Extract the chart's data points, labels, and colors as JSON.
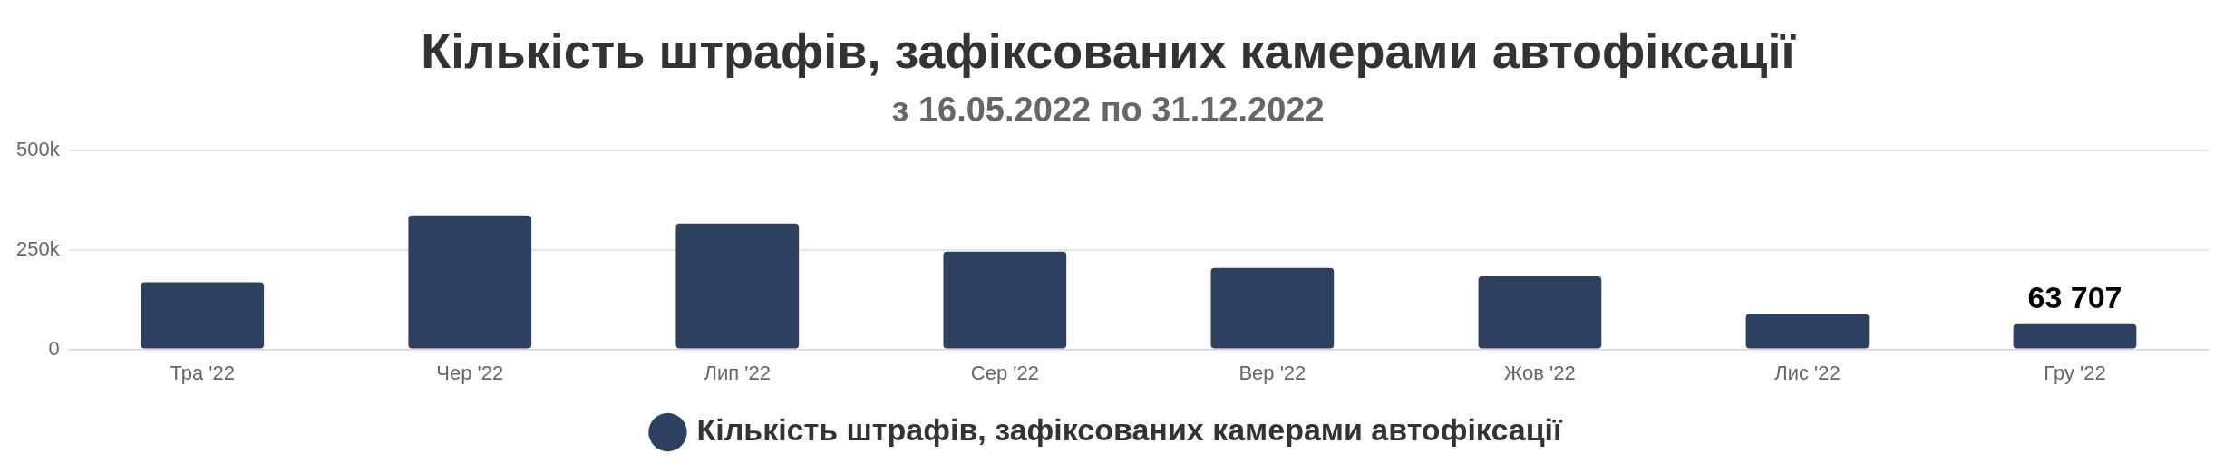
{
  "chart_data": {
    "type": "bar",
    "title": "Кількість штрафів, зафіксованих камерами автофіксації",
    "subtitle": "з 16.05.2022 по 31.12.2022",
    "categories": [
      "Тра '22",
      "Чер '22",
      "Лип '22",
      "Сер '22",
      "Вер '22",
      "Жов '22",
      "Лис '22",
      "Гру '22"
    ],
    "series": [
      {
        "name": "Кількість штрафів, зафіксованих камерами автофіксації",
        "color": "#2d4060",
        "values": [
          169000,
          337000,
          317000,
          246000,
          205000,
          184000,
          89000,
          63707
        ],
        "value_labels": [
          null,
          null,
          null,
          null,
          null,
          null,
          null,
          "63 707"
        ]
      }
    ],
    "ylim": [
      0,
      500000
    ],
    "yticks": [
      0,
      {
        "value": 250000,
        "label": "250k"
      },
      {
        "value": 500000,
        "label": "500k"
      }
    ],
    "grid": "y",
    "legend": "bottom"
  }
}
